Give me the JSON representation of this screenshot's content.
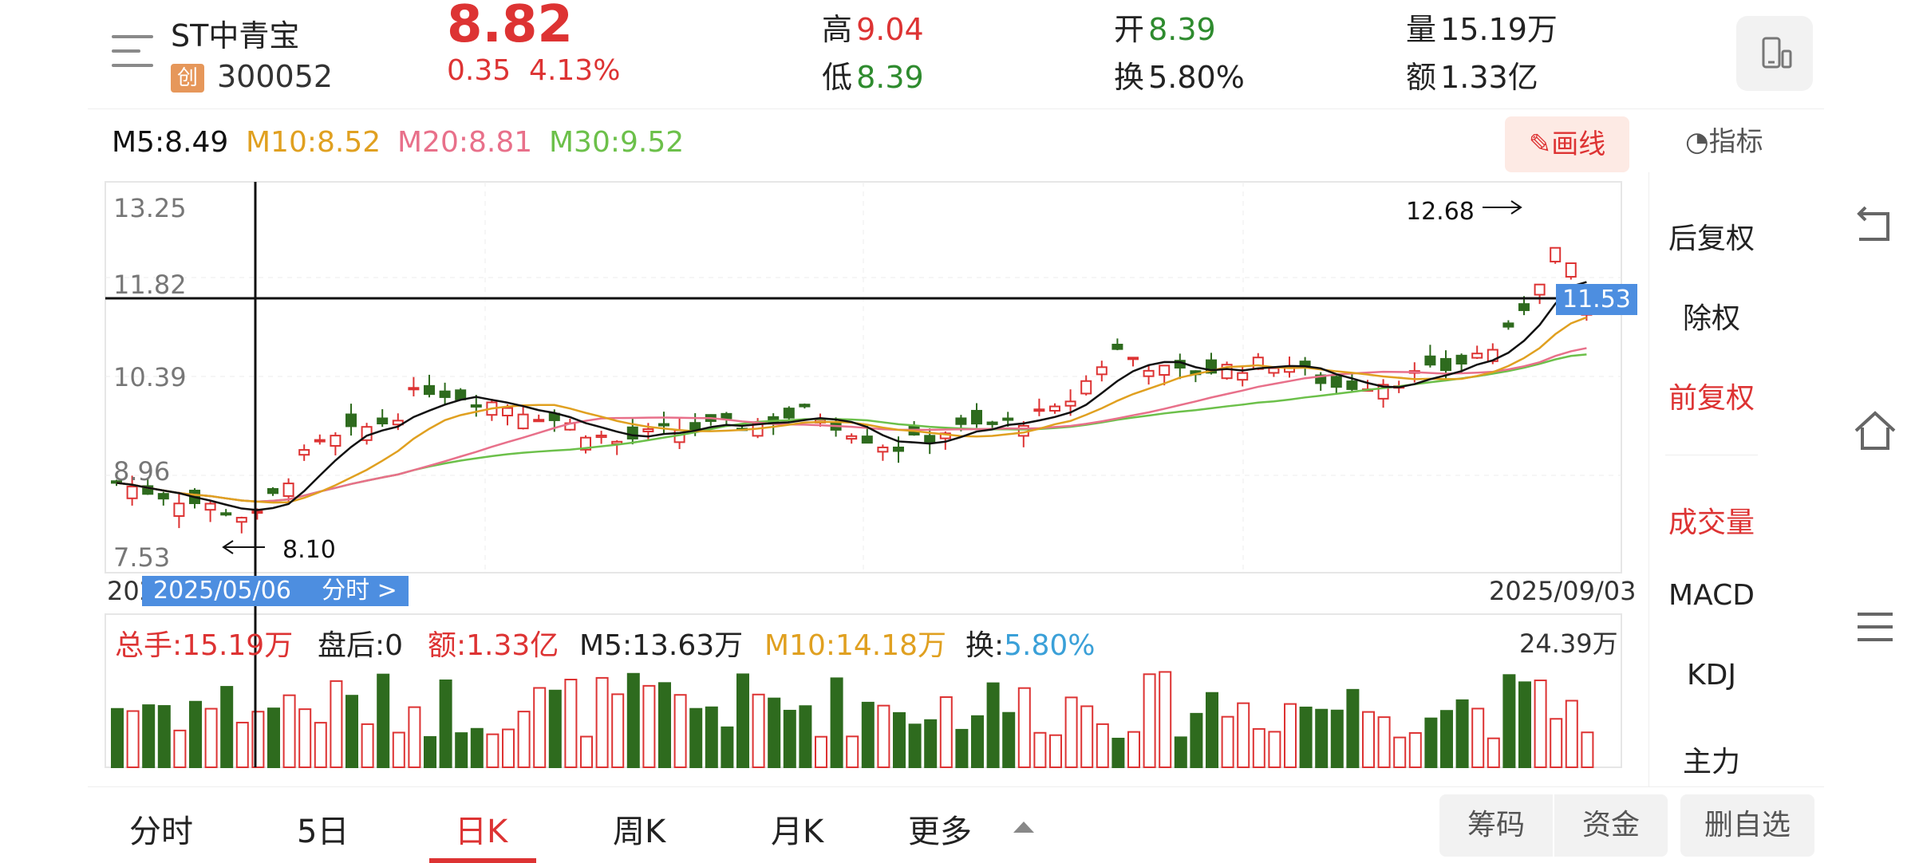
{
  "header": {
    "stock_name": "ST中青宝",
    "board_badge": "创",
    "stock_code": "300052",
    "price": "8.82",
    "change": "0.35",
    "change_pct": "4.13%",
    "quotes": {
      "high_label": "高",
      "high": "9.04",
      "low_label": "低",
      "low": "8.39",
      "open_label": "开",
      "open": "8.39",
      "turnover_label": "换",
      "turnover": "5.80%",
      "volume_label": "量",
      "volume": "15.19万",
      "amount_label": "额",
      "amount": "1.33亿"
    }
  },
  "ma_legend": {
    "m5": "M5:8.49",
    "m10": "M10:8.52",
    "m20": "M20:8.81",
    "m30": "M30:9.52"
  },
  "toolbar": {
    "draw_label": "画线",
    "indicator_label": "指标"
  },
  "chart": {
    "y_ticks": [
      "13.25",
      "11.82",
      "10.39",
      "8.96",
      "7.53"
    ],
    "high_mark": "12.68",
    "low_mark": "8.10",
    "crosshair_value": "11.53",
    "crosshair_date": "2025/05/06",
    "time_link": "分时 >",
    "date_left": "202",
    "date_right": "2025/09/03"
  },
  "volume": {
    "total_hands": "总手:15.19万",
    "after_hours": "盘后:0",
    "amount": "额:1.33亿",
    "m5": "M5:13.63万",
    "m10": "M10:14.18万",
    "turnover_label": "换:",
    "turnover": "5.80%",
    "max": "24.39万"
  },
  "side_menu": {
    "items": [
      "后复权",
      "除权",
      "前复权",
      "成交量",
      "MACD",
      "KDJ",
      "主力"
    ]
  },
  "tabs": [
    "分时",
    "5日",
    "日K",
    "周K",
    "月K",
    "更多"
  ],
  "bottom_buttons": {
    "chips": "筹码",
    "funds": "资金",
    "remove_watch": "删自选"
  },
  "colors": {
    "up": "#dd3333",
    "down": "#2e6b1e",
    "ma5": "#111111",
    "ma10": "#e0a020",
    "ma20": "#e8708a",
    "ma30": "#6cc04a",
    "accent_blue": "#4d8ee0"
  }
}
